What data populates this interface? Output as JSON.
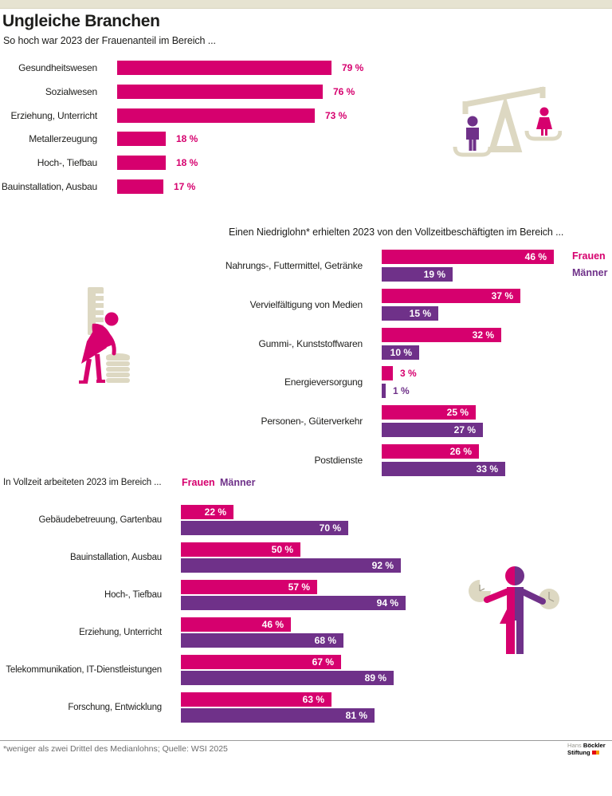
{
  "header": {
    "title": "Ungleiche Branchen"
  },
  "colors": {
    "frauen": "#d6006e",
    "maenner": "#6f3189",
    "beige": "#ddd8c2",
    "topbar": "#e6e3d1"
  },
  "chart_data": [
    {
      "type": "bar",
      "title": "So hoch war 2023 der Frauenanteil im Bereich ...",
      "orientation": "horizontal",
      "unit": "%",
      "xlim": [
        0,
        100
      ],
      "grid": false,
      "categories": [
        "Gesundheitswesen",
        "Sozialwesen",
        "Erziehung, Unterricht",
        "Metallerzeugung",
        "Hoch-, Tiefbau",
        "Bauinstallation, Ausbau"
      ],
      "values": [
        79,
        76,
        73,
        18,
        18,
        17
      ]
    },
    {
      "type": "bar",
      "title": "Einen Niedriglohn* erhielten 2023 von den Vollzeitbeschäftigten im Bereich ...",
      "orientation": "horizontal",
      "unit": "%",
      "xlim": [
        0,
        100
      ],
      "grid": false,
      "legend_position": "right",
      "categories": [
        "Nahrungs-, Futtermittel, Getränke",
        "Vervielfältigung von Medien",
        "Gummi-, Kunststoffwaren",
        "Energieversorgung",
        "Personen-, Güterverkehr",
        "Postdienste"
      ],
      "series": [
        {
          "name": "Frauen",
          "values": [
            46,
            37,
            32,
            3,
            25,
            26
          ]
        },
        {
          "name": "Männer",
          "values": [
            19,
            15,
            10,
            1,
            27,
            33
          ]
        }
      ]
    },
    {
      "type": "bar",
      "title": "In Vollzeit arbeiteten 2023 im Bereich ...",
      "orientation": "horizontal",
      "unit": "%",
      "xlim": [
        0,
        100
      ],
      "grid": false,
      "legend_position": "top",
      "categories": [
        "Gebäudebetreuung, Gartenbau",
        "Bauinstallation, Ausbau",
        "Hoch-, Tiefbau",
        "Erziehung, Unterricht",
        "Telekommunikation, IT-Dienstleistungen",
        "Forschung, Entwicklung"
      ],
      "series": [
        {
          "name": "Frauen",
          "values": [
            22,
            50,
            57,
            46,
            67,
            63
          ]
        },
        {
          "name": "Männer",
          "values": [
            70,
            92,
            94,
            68,
            89,
            81
          ]
        }
      ]
    }
  ],
  "icons": {
    "balance": "gender-balance-scale-icon",
    "coins": "woman-measuring-coins-icon",
    "clocks": "split-person-clocks-icon"
  },
  "footer": {
    "note": "*weniger als zwei Drittel des Medianlohns; Quelle: WSI 2025",
    "logo": {
      "hans": "Hans",
      "boeckler": "Böckler",
      "stiftung": "Stiftung"
    }
  }
}
